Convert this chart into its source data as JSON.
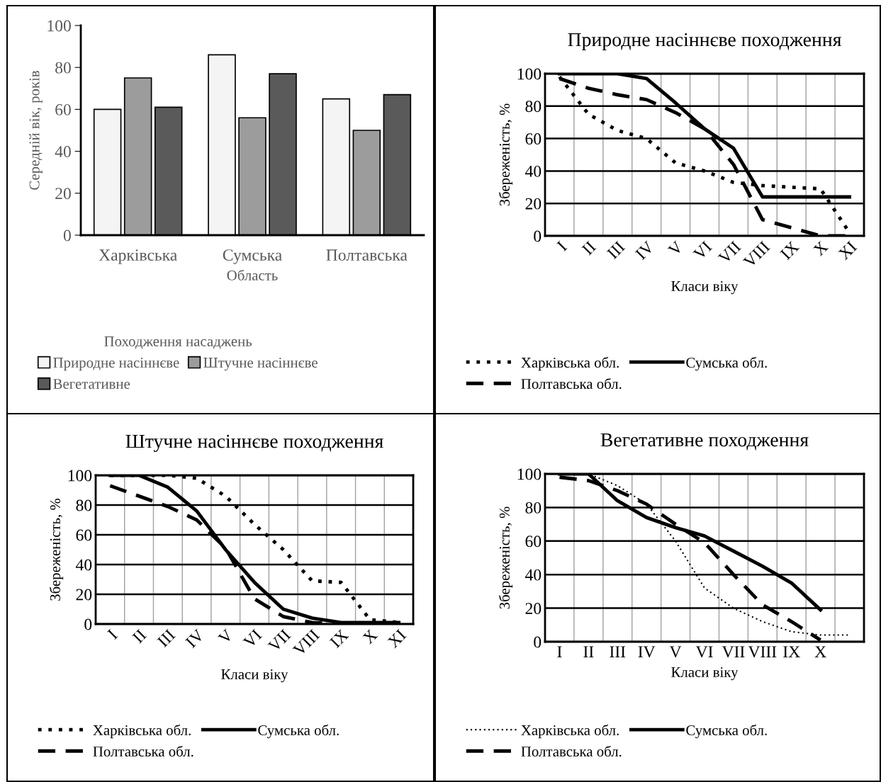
{
  "chart_data": [
    {
      "type": "bar",
      "xlabel": "Область",
      "ylabel": "Середній вік, років",
      "legend_title": "Походження насаджень",
      "categories": [
        "Харківська",
        "Сумська",
        "Полтавська"
      ],
      "ylim": [
        0,
        100
      ],
      "yticks": [
        0,
        20,
        40,
        60,
        80,
        100
      ],
      "grid": false,
      "legend": "bottom",
      "series": [
        {
          "name": "Природне насіннєве",
          "color": "#f4f4f4",
          "values": [
            60,
            86,
            65
          ]
        },
        {
          "name": "Штучне насіннєве",
          "color": "#9c9c9c",
          "values": [
            75,
            56,
            50
          ]
        },
        {
          "name": "Вегетативне",
          "color": "#5a5a5a",
          "values": [
            61,
            77,
            67
          ]
        }
      ]
    },
    {
      "type": "line",
      "title": "Природне насіннєве походження",
      "xlabel": "Класи віку",
      "ylabel": "Збереженість, %",
      "categories": [
        "I",
        "II",
        "III",
        "IV",
        "V",
        "VI",
        "VII",
        "VIII",
        "IX",
        "X",
        "XI"
      ],
      "ylim": [
        0,
        100
      ],
      "yticks": [
        0,
        20,
        40,
        60,
        80,
        100
      ],
      "grid": true,
      "legend": "bottom",
      "marker": "none",
      "series": [
        {
          "name": "Харківська обл.",
          "color": "#000000",
          "line_style": "dotted",
          "values": [
            98,
            75,
            65,
            60,
            45,
            40,
            33,
            31,
            30,
            29,
            2
          ]
        },
        {
          "name": "Сумська обл.",
          "color": "#000000",
          "line_style": "solid",
          "values": [
            100,
            100,
            100,
            97,
            82,
            66,
            54,
            24,
            24,
            24,
            24
          ]
        },
        {
          "name": "Полтавська обл.",
          "color": "#000000",
          "line_style": "dashed",
          "values": [
            97,
            91,
            87,
            84,
            76,
            66,
            44,
            10,
            5,
            0,
            0
          ]
        }
      ]
    },
    {
      "type": "line",
      "title": "Штучне насіннєве походження",
      "xlabel": "Класи віку",
      "ylabel": "Збереженість, %",
      "categories": [
        "I",
        "II",
        "III",
        "IV",
        "V",
        "VI",
        "VII",
        "VIII",
        "IX",
        "X",
        "XI"
      ],
      "ylim": [
        0,
        100
      ],
      "yticks": [
        0,
        20,
        40,
        60,
        80,
        100
      ],
      "grid": true,
      "legend": "bottom",
      "marker": "none",
      "series": [
        {
          "name": "Харківська обл.",
          "color": "#000000",
          "line_style": "dotted",
          "values": [
            100,
            100,
            100,
            98,
            86,
            67,
            50,
            29,
            28,
            3,
            1
          ]
        },
        {
          "name": "Сумська обл.",
          "color": "#000000",
          "line_style": "solid",
          "values": [
            100,
            100,
            92,
            76,
            50,
            28,
            10,
            4,
            1,
            1,
            1
          ]
        },
        {
          "name": "Полтавська обл.",
          "color": "#000000",
          "line_style": "dashed",
          "values": [
            93,
            86,
            79,
            70,
            51,
            17,
            5,
            1,
            0,
            0,
            0
          ]
        }
      ]
    },
    {
      "type": "line",
      "title": "Вегетативне походження",
      "xlabel": "Класи віку",
      "ylabel": "Збереженість, %",
      "categories": [
        "I",
        "II",
        "III",
        "IV",
        "V",
        "VI",
        "VII",
        "VIII",
        "IX",
        "X",
        null
      ],
      "ylim": [
        0,
        100
      ],
      "yticks": [
        0,
        20,
        40,
        60,
        80,
        100
      ],
      "grid": true,
      "legend": "bottom",
      "marker": "none",
      "series": [
        {
          "name": "Харківська обл.",
          "color": "#000000",
          "line_style": "dotted",
          "values": [
            100,
            100,
            93,
            82,
            60,
            32,
            20,
            12,
            6,
            4,
            4
          ]
        },
        {
          "name": "Сумська обл.",
          "color": "#000000",
          "line_style": "solid",
          "values": [
            100,
            100,
            84,
            74,
            68,
            63,
            54,
            45,
            35,
            19,
            null
          ]
        },
        {
          "name": "Полтавська обл.",
          "color": "#000000",
          "line_style": "dashed",
          "values": [
            98,
            96,
            90,
            82,
            70,
            59,
            40,
            22,
            12,
            1,
            null
          ]
        }
      ]
    }
  ]
}
